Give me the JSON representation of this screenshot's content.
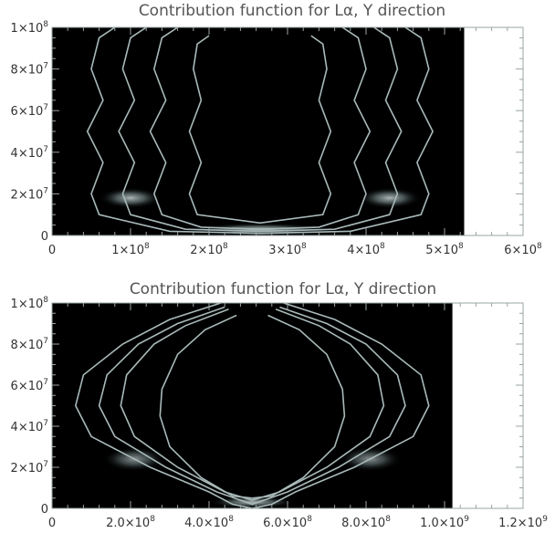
{
  "chart_data": [
    {
      "type": "heatmap",
      "title": "Contribution function for Lα, Y direction",
      "xlim": [
        0,
        600000000
      ],
      "ylim": [
        0,
        100000000
      ],
      "data_extent_x": [
        0,
        525000000
      ],
      "x_ticks": [
        {
          "value": 0,
          "label": "0"
        },
        {
          "value": 100000000,
          "label": "1×10^8"
        },
        {
          "value": 200000000,
          "label": "2×10^8"
        },
        {
          "value": 300000000,
          "label": "3×10^8"
        },
        {
          "value": 400000000,
          "label": "4×10^8"
        },
        {
          "value": 500000000,
          "label": "5×10^8"
        },
        {
          "value": 600000000,
          "label": "6×10^8"
        }
      ],
      "y_ticks": [
        {
          "value": 0,
          "label": "0"
        },
        {
          "value": 20000000,
          "label": "2×10^7"
        },
        {
          "value": 40000000,
          "label": "4×10^7"
        },
        {
          "value": 60000000,
          "label": "6×10^7"
        },
        {
          "value": 80000000,
          "label": "8×10^7"
        },
        {
          "value": 100000000,
          "label": "1×10^8"
        }
      ],
      "background_color": "#000000",
      "contour_color": "#a9b9b9",
      "contours": [
        [
          [
            80000000,
            100000000
          ],
          [
            60000000,
            95000000
          ],
          [
            50000000,
            80000000
          ],
          [
            65000000,
            65000000
          ],
          [
            45000000,
            50000000
          ],
          [
            65000000,
            35000000
          ],
          [
            50000000,
            20000000
          ],
          [
            60000000,
            10000000
          ],
          [
            150000000,
            2000000
          ],
          [
            265000000,
            1000000
          ],
          [
            380000000,
            2000000
          ],
          [
            470000000,
            10000000
          ],
          [
            480000000,
            20000000
          ],
          [
            465000000,
            35000000
          ],
          [
            485000000,
            50000000
          ],
          [
            465000000,
            65000000
          ],
          [
            480000000,
            80000000
          ],
          [
            470000000,
            95000000
          ],
          [
            450000000,
            100000000
          ]
        ],
        [
          [
            120000000,
            100000000
          ],
          [
            100000000,
            95000000
          ],
          [
            90000000,
            80000000
          ],
          [
            105000000,
            65000000
          ],
          [
            85000000,
            50000000
          ],
          [
            105000000,
            35000000
          ],
          [
            90000000,
            20000000
          ],
          [
            100000000,
            10000000
          ],
          [
            170000000,
            3000000
          ],
          [
            265000000,
            2000000
          ],
          [
            360000000,
            3000000
          ],
          [
            430000000,
            10000000
          ],
          [
            440000000,
            20000000
          ],
          [
            425000000,
            35000000
          ],
          [
            445000000,
            50000000
          ],
          [
            425000000,
            65000000
          ],
          [
            440000000,
            80000000
          ],
          [
            430000000,
            95000000
          ],
          [
            410000000,
            100000000
          ]
        ],
        [
          [
            160000000,
            100000000
          ],
          [
            140000000,
            95000000
          ],
          [
            130000000,
            80000000
          ],
          [
            145000000,
            65000000
          ],
          [
            125000000,
            50000000
          ],
          [
            145000000,
            35000000
          ],
          [
            130000000,
            20000000
          ],
          [
            140000000,
            10000000
          ],
          [
            190000000,
            4000000
          ],
          [
            265000000,
            3000000
          ],
          [
            340000000,
            4000000
          ],
          [
            390000000,
            10000000
          ],
          [
            400000000,
            20000000
          ],
          [
            385000000,
            35000000
          ],
          [
            405000000,
            50000000
          ],
          [
            385000000,
            65000000
          ],
          [
            400000000,
            80000000
          ],
          [
            390000000,
            95000000
          ],
          [
            370000000,
            100000000
          ]
        ],
        [
          [
            200000000,
            96000000
          ],
          [
            185000000,
            92000000
          ],
          [
            180000000,
            80000000
          ],
          [
            190000000,
            65000000
          ],
          [
            175000000,
            50000000
          ],
          [
            190000000,
            35000000
          ],
          [
            175000000,
            20000000
          ],
          [
            185000000,
            10000000
          ],
          [
            265000000,
            6000000
          ],
          [
            345000000,
            10000000
          ],
          [
            355000000,
            20000000
          ],
          [
            340000000,
            35000000
          ],
          [
            355000000,
            50000000
          ],
          [
            340000000,
            65000000
          ],
          [
            350000000,
            80000000
          ],
          [
            345000000,
            92000000
          ],
          [
            330000000,
            96000000
          ]
        ]
      ],
      "bright_regions": [
        {
          "x": 100000000,
          "y": 18000000,
          "rx": 40000000,
          "ry": 5000000,
          "intensity": 0.75
        },
        {
          "x": 430000000,
          "y": 18000000,
          "rx": 40000000,
          "ry": 5000000,
          "intensity": 0.75
        },
        {
          "x": 265000000,
          "y": 3000000,
          "rx": 90000000,
          "ry": 3000000,
          "intensity": 0.8
        }
      ]
    },
    {
      "type": "heatmap",
      "title": "Contribution function for Lα, Y direction",
      "xlim": [
        0,
        1200000000
      ],
      "ylim": [
        0,
        100000000
      ],
      "data_extent_x": [
        0,
        1020000000
      ],
      "x_ticks": [
        {
          "value": 0,
          "label": "0"
        },
        {
          "value": 200000000,
          "label": "2.0×10^8"
        },
        {
          "value": 400000000,
          "label": "4.0×10^8"
        },
        {
          "value": 600000000,
          "label": "6.0×10^8"
        },
        {
          "value": 800000000,
          "label": "8.0×10^8"
        },
        {
          "value": 1000000000,
          "label": "1.0×10^9"
        },
        {
          "value": 1200000000,
          "label": "1.2×10^9"
        }
      ],
      "y_ticks": [
        {
          "value": 0,
          "label": "0"
        },
        {
          "value": 20000000,
          "label": "2×10^7"
        },
        {
          "value": 40000000,
          "label": "4×10^7"
        },
        {
          "value": 60000000,
          "label": "6×10^7"
        },
        {
          "value": 80000000,
          "label": "8×10^7"
        },
        {
          "value": 100000000,
          "label": "1×10^8"
        }
      ],
      "background_color": "#000000",
      "contour_color": "#a9b9b9",
      "contours": [
        [
          [
            430000000,
            100000000
          ],
          [
            300000000,
            92000000
          ],
          [
            180000000,
            80000000
          ],
          [
            80000000,
            65000000
          ],
          [
            60000000,
            50000000
          ],
          [
            100000000,
            35000000
          ],
          [
            250000000,
            20000000
          ],
          [
            400000000,
            8000000
          ],
          [
            460000000,
            2000000
          ],
          [
            510000000,
            0
          ],
          [
            560000000,
            2000000
          ],
          [
            620000000,
            8000000
          ],
          [
            770000000,
            20000000
          ],
          [
            920000000,
            35000000
          ],
          [
            960000000,
            50000000
          ],
          [
            940000000,
            65000000
          ],
          [
            840000000,
            80000000
          ],
          [
            720000000,
            92000000
          ],
          [
            590000000,
            100000000
          ]
        ],
        [
          [
            440000000,
            98000000
          ],
          [
            320000000,
            90000000
          ],
          [
            220000000,
            80000000
          ],
          [
            140000000,
            65000000
          ],
          [
            120000000,
            50000000
          ],
          [
            160000000,
            35000000
          ],
          [
            290000000,
            20000000
          ],
          [
            420000000,
            8000000
          ],
          [
            510000000,
            2000000
          ],
          [
            600000000,
            8000000
          ],
          [
            730000000,
            20000000
          ],
          [
            860000000,
            35000000
          ],
          [
            900000000,
            50000000
          ],
          [
            880000000,
            65000000
          ],
          [
            800000000,
            80000000
          ],
          [
            700000000,
            90000000
          ],
          [
            580000000,
            98000000
          ]
        ],
        [
          [
            450000000,
            97000000
          ],
          [
            340000000,
            89000000
          ],
          [
            260000000,
            80000000
          ],
          [
            190000000,
            65000000
          ],
          [
            175000000,
            50000000
          ],
          [
            210000000,
            35000000
          ],
          [
            320000000,
            20000000
          ],
          [
            440000000,
            8000000
          ],
          [
            510000000,
            4000000
          ],
          [
            580000000,
            8000000
          ],
          [
            700000000,
            20000000
          ],
          [
            810000000,
            35000000
          ],
          [
            845000000,
            50000000
          ],
          [
            830000000,
            65000000
          ],
          [
            760000000,
            80000000
          ],
          [
            680000000,
            89000000
          ],
          [
            570000000,
            97000000
          ]
        ],
        [
          [
            470000000,
            94000000
          ],
          [
            390000000,
            87000000
          ],
          [
            320000000,
            75000000
          ],
          [
            280000000,
            58000000
          ],
          [
            275000000,
            45000000
          ],
          [
            300000000,
            30000000
          ],
          [
            380000000,
            15000000
          ],
          [
            460000000,
            6000000
          ],
          [
            510000000,
            5000000
          ],
          [
            560000000,
            6000000
          ],
          [
            640000000,
            15000000
          ],
          [
            720000000,
            30000000
          ],
          [
            745000000,
            45000000
          ],
          [
            740000000,
            58000000
          ],
          [
            700000000,
            75000000
          ],
          [
            630000000,
            87000000
          ],
          [
            550000000,
            94000000
          ]
        ]
      ],
      "bright_regions": [
        {
          "x": 210000000,
          "y": 24000000,
          "rx": 80000000,
          "ry": 6000000,
          "intensity": 0.6
        },
        {
          "x": 810000000,
          "y": 24000000,
          "rx": 80000000,
          "ry": 6000000,
          "intensity": 0.6
        },
        {
          "x": 510000000,
          "y": 3000000,
          "rx": 110000000,
          "ry": 3000000,
          "intensity": 0.75
        }
      ]
    }
  ]
}
